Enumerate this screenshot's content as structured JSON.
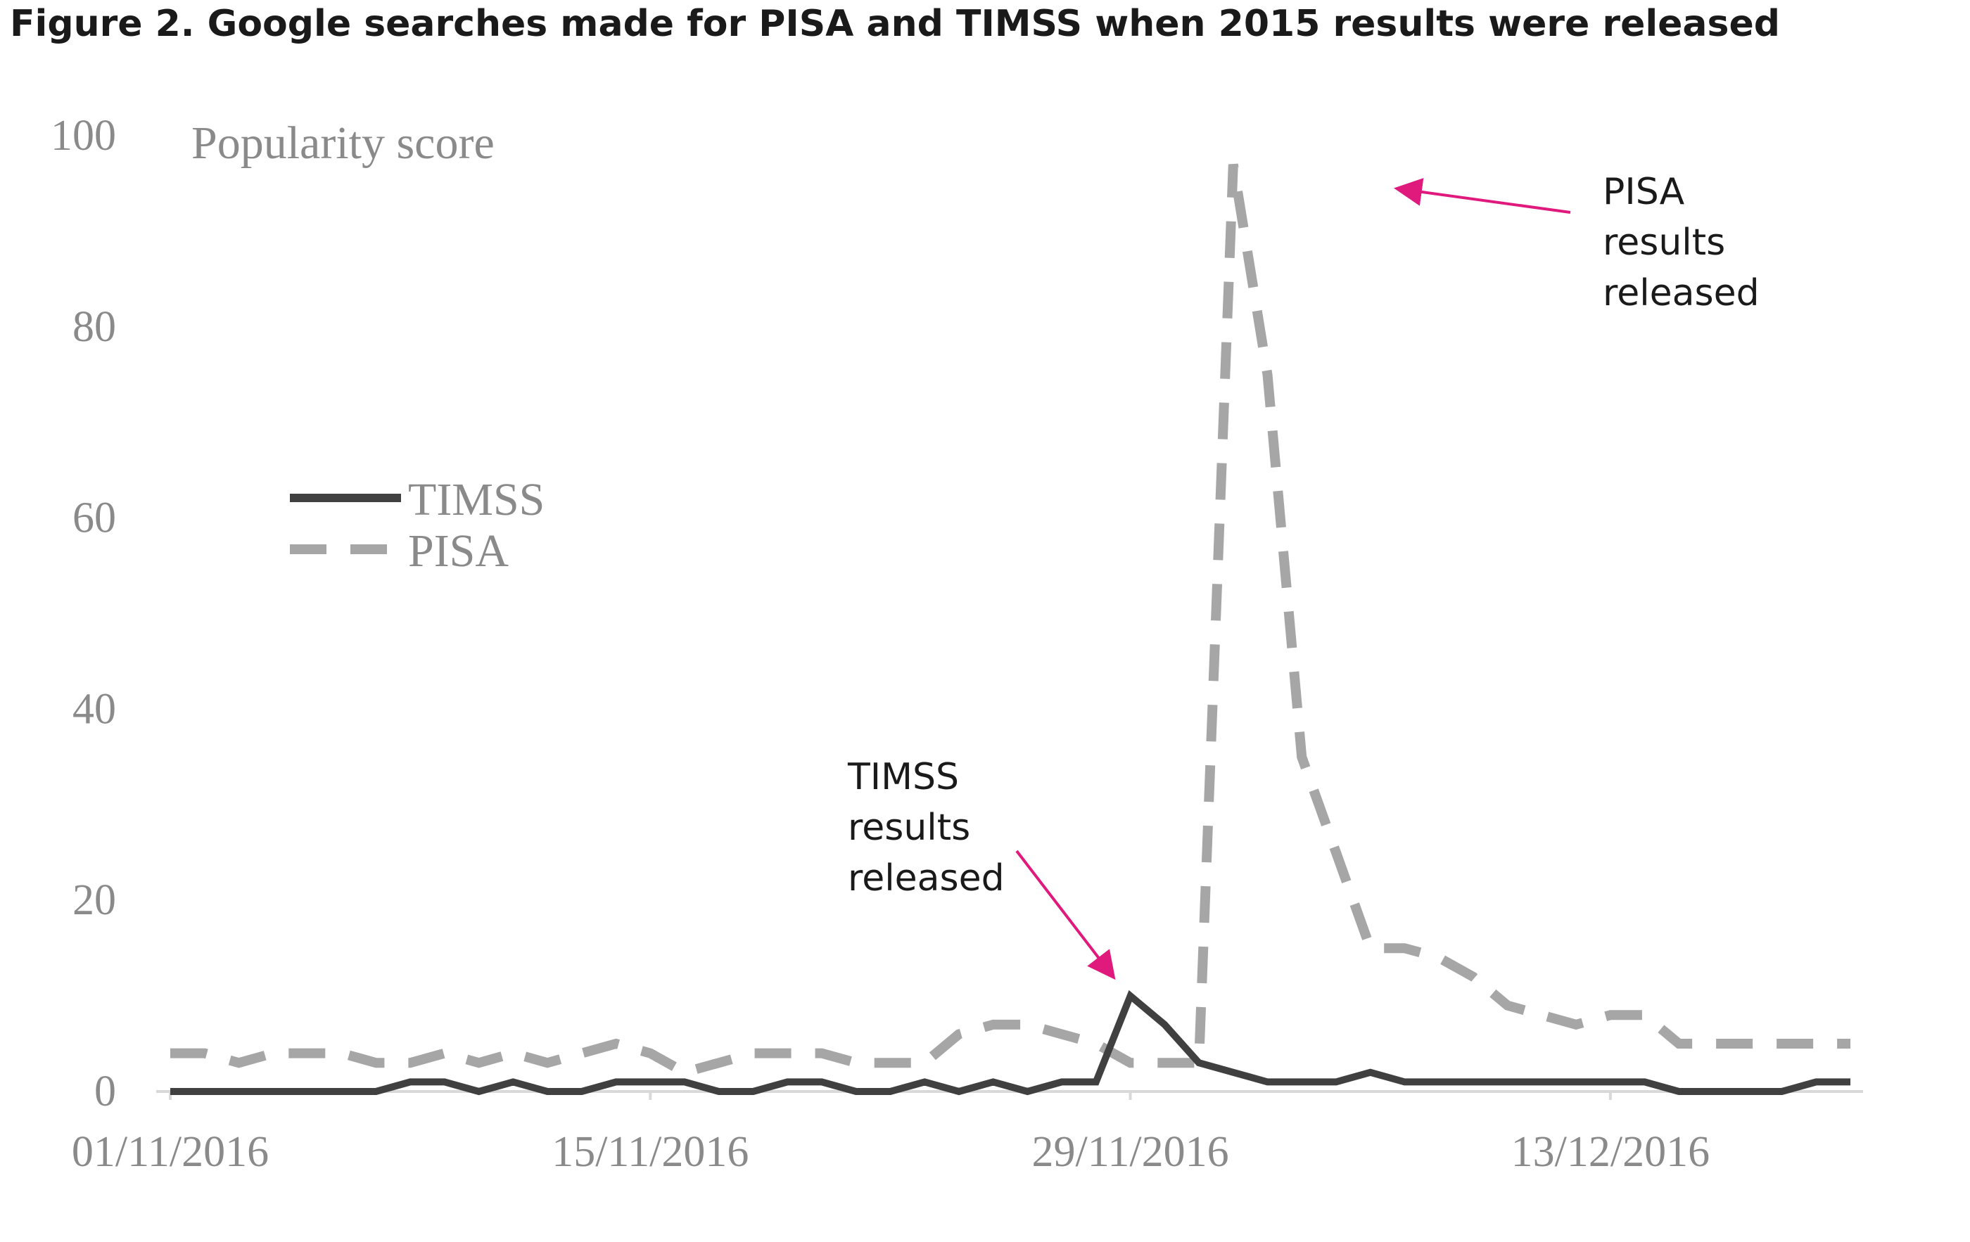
{
  "title": "Figure 2. Google searches made for PISA and TIMSS when 2015 results were released",
  "chart_data": {
    "type": "line",
    "title": "Figure 2. Google searches made for PISA and TIMSS when 2015 results were released",
    "xlabel": "",
    "ylabel": "Popularity score",
    "ylim": [
      0,
      100
    ],
    "yticks": [
      0,
      20,
      40,
      60,
      80,
      100
    ],
    "x_tick_labels": [
      "01/11/2016",
      "15/11/2016",
      "29/11/2016",
      "13/12/2016"
    ],
    "x_start": "01/11/2016",
    "x_end": "20/12/2016",
    "x": [
      "01/11/2016",
      "02/11/2016",
      "03/11/2016",
      "04/11/2016",
      "05/11/2016",
      "06/11/2016",
      "07/11/2016",
      "08/11/2016",
      "09/11/2016",
      "10/11/2016",
      "11/11/2016",
      "12/11/2016",
      "13/11/2016",
      "14/11/2016",
      "15/11/2016",
      "16/11/2016",
      "17/11/2016",
      "18/11/2016",
      "19/11/2016",
      "20/11/2016",
      "21/11/2016",
      "22/11/2016",
      "23/11/2016",
      "24/11/2016",
      "25/11/2016",
      "26/11/2016",
      "27/11/2016",
      "28/11/2016",
      "29/11/2016",
      "30/11/2016",
      "01/12/2016",
      "02/12/2016",
      "03/12/2016",
      "04/12/2016",
      "05/12/2016",
      "06/12/2016",
      "07/12/2016",
      "08/12/2016",
      "09/12/2016",
      "10/12/2016",
      "11/12/2016",
      "12/12/2016",
      "13/12/2016",
      "14/12/2016",
      "15/12/2016",
      "16/12/2016",
      "17/12/2016",
      "18/12/2016",
      "19/12/2016",
      "20/12/2016"
    ],
    "grid": false,
    "legend_position": "left",
    "series": [
      {
        "name": "TIMSS",
        "color": "#404040",
        "style": "solid",
        "values": [
          0,
          0,
          0,
          0,
          0,
          0,
          0,
          1,
          1,
          0,
          1,
          0,
          0,
          1,
          1,
          1,
          0,
          0,
          1,
          1,
          0,
          0,
          1,
          0,
          1,
          0,
          1,
          1,
          10,
          7,
          3,
          2,
          1,
          1,
          1,
          2,
          1,
          1,
          1,
          1,
          1,
          1,
          1,
          1,
          0,
          0,
          0,
          0,
          1,
          1
        ]
      },
      {
        "name": "PISA",
        "color": "#a6a6a6",
        "style": "dashed",
        "values": [
          4,
          4,
          3,
          4,
          4,
          4,
          3,
          3,
          4,
          3,
          4,
          3,
          4,
          5,
          4,
          2,
          3,
          4,
          4,
          4,
          3,
          3,
          3,
          6,
          7,
          7,
          6,
          5,
          3,
          3,
          3,
          97,
          75,
          35,
          25,
          15,
          15,
          14,
          12,
          9,
          8,
          7,
          8,
          8,
          5,
          5,
          5,
          5,
          5,
          5
        ]
      }
    ],
    "legend": [
      "TIMSS",
      "PISA"
    ],
    "annotations": [
      {
        "lines": [
          "TIMSS",
          "results",
          "released"
        ],
        "target_series": "TIMSS",
        "target_x": "30/11/2016",
        "color": "#e0197d"
      },
      {
        "lines": [
          "PISA",
          "results",
          "released"
        ],
        "target_series": "PISA",
        "target_x": "07/12/2016",
        "color": "#e0197d"
      }
    ]
  }
}
